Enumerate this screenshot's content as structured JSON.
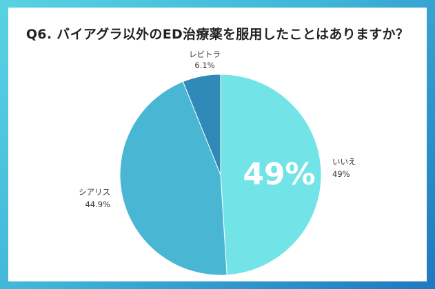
{
  "title": "Q6. バイアグラ以外のED治療薬を服用したことはありますか？",
  "chart_data": {
    "type": "pie",
    "title": "Q6. バイアグラ以外のED治療薬を服用したことはありますか？",
    "slices": [
      {
        "label": "いいえ",
        "value": 49,
        "value_text": "49%",
        "color": "#72e3e7"
      },
      {
        "label": "シアリス",
        "value": 44.9,
        "value_text": "44.9%",
        "color": "#49b6d3"
      },
      {
        "label": "レビトラ",
        "value": 6.1,
        "value_text": "6.1%",
        "color": "#2f8ab7"
      }
    ],
    "highlight": {
      "label": "いいえ",
      "text": "49%"
    },
    "start_angle": "top",
    "direction": "clockwise"
  }
}
